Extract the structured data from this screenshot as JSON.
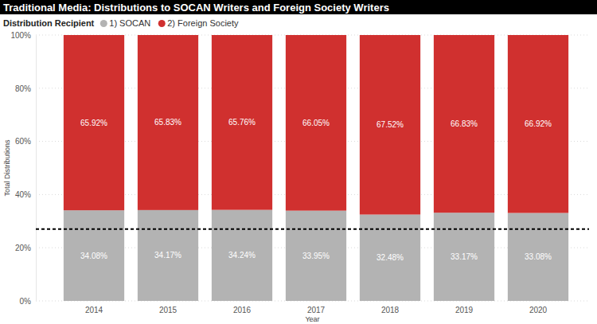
{
  "chart_data": {
    "type": "bar",
    "title": "Traditional Media: Distributions to SOCAN Writers and Foreign Society Writers",
    "legend_title": "Distribution Recipient",
    "x_label": "Year",
    "y_label": "Total Distributions",
    "categories": [
      "2014",
      "2015",
      "2016",
      "2017",
      "2018",
      "2019",
      "2020"
    ],
    "series": [
      {
        "name": "1) SOCAN",
        "color": "#b3b3b3",
        "values": [
          34.08,
          34.17,
          34.24,
          33.95,
          32.48,
          33.17,
          33.08
        ],
        "value_labels": [
          "34.08%",
          "34.17%",
          "34.24%",
          "33.95%",
          "32.48%",
          "33.17%",
          "33.08%"
        ]
      },
      {
        "name": "2) Foreign Society",
        "color": "#d0302f",
        "values": [
          65.92,
          65.83,
          65.76,
          66.05,
          67.52,
          66.83,
          66.92
        ],
        "value_labels": [
          "65.92%",
          "65.83%",
          "65.76%",
          "66.05%",
          "67.52%",
          "66.83%",
          "66.92%"
        ]
      }
    ],
    "reference_line": 27,
    "ylim": [
      0,
      100
    ],
    "yticks": [
      {
        "value": 0,
        "label": "0%"
      },
      {
        "value": 20,
        "label": "20%"
      },
      {
        "value": 40,
        "label": "40%"
      },
      {
        "value": 60,
        "label": "60%"
      },
      {
        "value": 80,
        "label": "80%"
      },
      {
        "value": 100,
        "label": "100%"
      }
    ],
    "stacked": true,
    "data_labels": true,
    "grid": true,
    "legend": "top-left"
  }
}
